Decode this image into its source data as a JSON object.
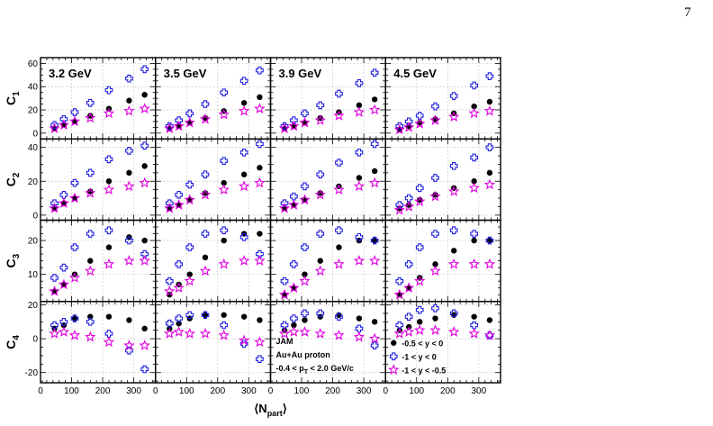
{
  "page_number": "7",
  "colors": {
    "black": "#000000",
    "blue": "#1f1fe0",
    "magenta": "#e000e0",
    "grid": "#c8c8c8",
    "frame": "#000000"
  },
  "legend": {
    "info_lines": [
      "JAM",
      "Au+Au proton",
      "-0.4 < p_T < 2.0 GeV/c"
    ],
    "entries": [
      {
        "label": "-0.5 < y < 0",
        "marker": "circle",
        "color": "black"
      },
      {
        "label": "-1 < y < 0",
        "marker": "open-cross",
        "color": "blue"
      },
      {
        "label": "-1 < y < -0.5",
        "marker": "open-star",
        "color": "magenta"
      }
    ]
  },
  "chart_data": {
    "type": "scatter",
    "layout": "grid 4 rows x 4 columns, shared axes",
    "x_label": "⟨N_part⟩",
    "xlim": [
      0,
      370
    ],
    "x_ticks": [
      0,
      100,
      200,
      300
    ],
    "x_minor_step": 20,
    "grid": true,
    "legend_location": "bottom-right panel (C4, 4.5 GeV)",
    "energies": [
      "3.2 GeV",
      "3.5 GeV",
      "3.9 GeV",
      "4.5 GeV"
    ],
    "npart": [
      45,
      75,
      110,
      160,
      220,
      285,
      335
    ],
    "rows": [
      {
        "label": "C1",
        "main": "C",
        "sub": "1",
        "ylim": [
          -5,
          65
        ],
        "y_ticks": [
          0,
          20,
          40,
          60
        ],
        "y_minor_step": 5,
        "panels": [
          {
            "black": [
              4,
              7,
              10,
              15,
              21,
              28,
              33
            ],
            "blue": [
              7,
              12,
              18,
              26,
              37,
              47,
              55
            ],
            "magenta": [
              4,
              7,
              10,
              13,
              17,
              19,
              21
            ]
          },
          {
            "black": [
              4,
              6,
              9,
              13,
              19,
              26,
              31
            ],
            "blue": [
              6,
              11,
              17,
              25,
              35,
              45,
              54
            ],
            "magenta": [
              4,
              6,
              9,
              12,
              16,
              19,
              21
            ]
          },
          {
            "black": [
              4,
              6,
              9,
              13,
              18,
              24,
              29
            ],
            "blue": [
              6,
              11,
              17,
              24,
              34,
              43,
              52
            ],
            "magenta": [
              4,
              6,
              9,
              11,
              15,
              18,
              20
            ]
          },
          {
            "black": [
              3,
              6,
              9,
              12,
              17,
              23,
              27
            ],
            "blue": [
              6,
              10,
              15,
              23,
              32,
              41,
              49
            ],
            "magenta": [
              3,
              5,
              8,
              11,
              14,
              17,
              19
            ]
          }
        ]
      },
      {
        "label": "C2",
        "main": "C",
        "sub": "2",
        "ylim": [
          -3,
          45
        ],
        "y_ticks": [
          0,
          20,
          40
        ],
        "y_minor_step": 5,
        "panels": [
          {
            "black": [
              4,
              7,
              10,
              14,
              20,
              25,
              29
            ],
            "blue": [
              7,
              12,
              19,
              25,
              33,
              38,
              41
            ],
            "magenta": [
              4,
              7,
              10,
              13,
              15,
              17,
              19
            ]
          },
          {
            "black": [
              4,
              6,
              9,
              13,
              19,
              24,
              28
            ],
            "blue": [
              7,
              12,
              18,
              24,
              32,
              37,
              42
            ],
            "magenta": [
              4,
              6,
              9,
              12,
              15,
              17,
              19
            ]
          },
          {
            "black": [
              4,
              6,
              9,
              13,
              17,
              22,
              26
            ],
            "blue": [
              7,
              11,
              17,
              24,
              31,
              37,
              42
            ],
            "magenta": [
              4,
              6,
              9,
              12,
              15,
              17,
              19
            ]
          },
          {
            "black": [
              4,
              6,
              9,
              12,
              16,
              20,
              25
            ],
            "blue": [
              6,
              10,
              16,
              22,
              29,
              34,
              40
            ],
            "magenta": [
              3,
              5,
              8,
              11,
              14,
              16,
              18
            ]
          }
        ]
      },
      {
        "label": "C3",
        "main": "C",
        "sub": "3",
        "ylim": [
          2,
          26
        ],
        "y_ticks": [
          10,
          20
        ],
        "y_minor_step": 2,
        "panels": [
          {
            "black": [
              5,
              7,
              10,
              14,
              18,
              21,
              20
            ],
            "blue": [
              9,
              12,
              18,
              22,
              23,
              20,
              16
            ],
            "magenta": [
              5,
              7,
              9,
              11,
              13,
              14,
              14
            ]
          },
          {
            "black": [
              4,
              7,
              10,
              15,
              20,
              22,
              22
            ],
            "blue": [
              8,
              13,
              18,
              22,
              23,
              21,
              16
            ],
            "magenta": [
              5,
              6,
              8,
              11,
              13,
              14,
              14
            ]
          },
          {
            "black": [
              4,
              6,
              10,
              14,
              18,
              20,
              20
            ],
            "blue": [
              8,
              13,
              18,
              22,
              23,
              21,
              20
            ],
            "magenta": [
              4,
              6,
              8,
              11,
              13,
              14,
              14
            ]
          },
          {
            "black": [
              4,
              6,
              9,
              13,
              17,
              20,
              20
            ],
            "blue": [
              8,
              13,
              18,
              22,
              23,
              22,
              20
            ],
            "magenta": [
              4,
              6,
              8,
              11,
              13,
              13,
              13
            ]
          }
        ]
      },
      {
        "label": "C4",
        "main": "C",
        "sub": "4",
        "ylim": [
          -26,
          22
        ],
        "y_ticks": [
          -20,
          0,
          20
        ],
        "y_minor_step": 5,
        "panels": [
          {
            "black": [
              6,
              8,
              12,
              13,
              13,
              11,
              6
            ],
            "blue": [
              8,
              10,
              12,
              10,
              3,
              -7,
              -18
            ],
            "magenta": [
              3,
              4,
              2,
              1,
              -2,
              -4,
              -4
            ]
          },
          {
            "black": [
              6,
              9,
              12,
              14,
              14,
              13,
              11
            ],
            "blue": [
              9,
              12,
              14,
              14,
              8,
              -3,
              -12
            ],
            "magenta": [
              3,
              4,
              3,
              3,
              2,
              -1,
              -2
            ]
          },
          {
            "black": [
              5,
              8,
              11,
              13,
              14,
              12,
              10
            ],
            "blue": [
              8,
              12,
              15,
              15,
              13,
              6,
              -4
            ],
            "magenta": [
              3,
              4,
              4,
              3,
              2,
              1,
              0
            ]
          },
          {
            "black": [
              5,
              7,
              10,
              12,
              14,
              13,
              11
            ],
            "blue": [
              8,
              13,
              17,
              18,
              15,
              8,
              2
            ],
            "magenta": [
              3,
              4,
              5,
              5,
              4,
              3,
              2
            ]
          }
        ]
      }
    ]
  }
}
